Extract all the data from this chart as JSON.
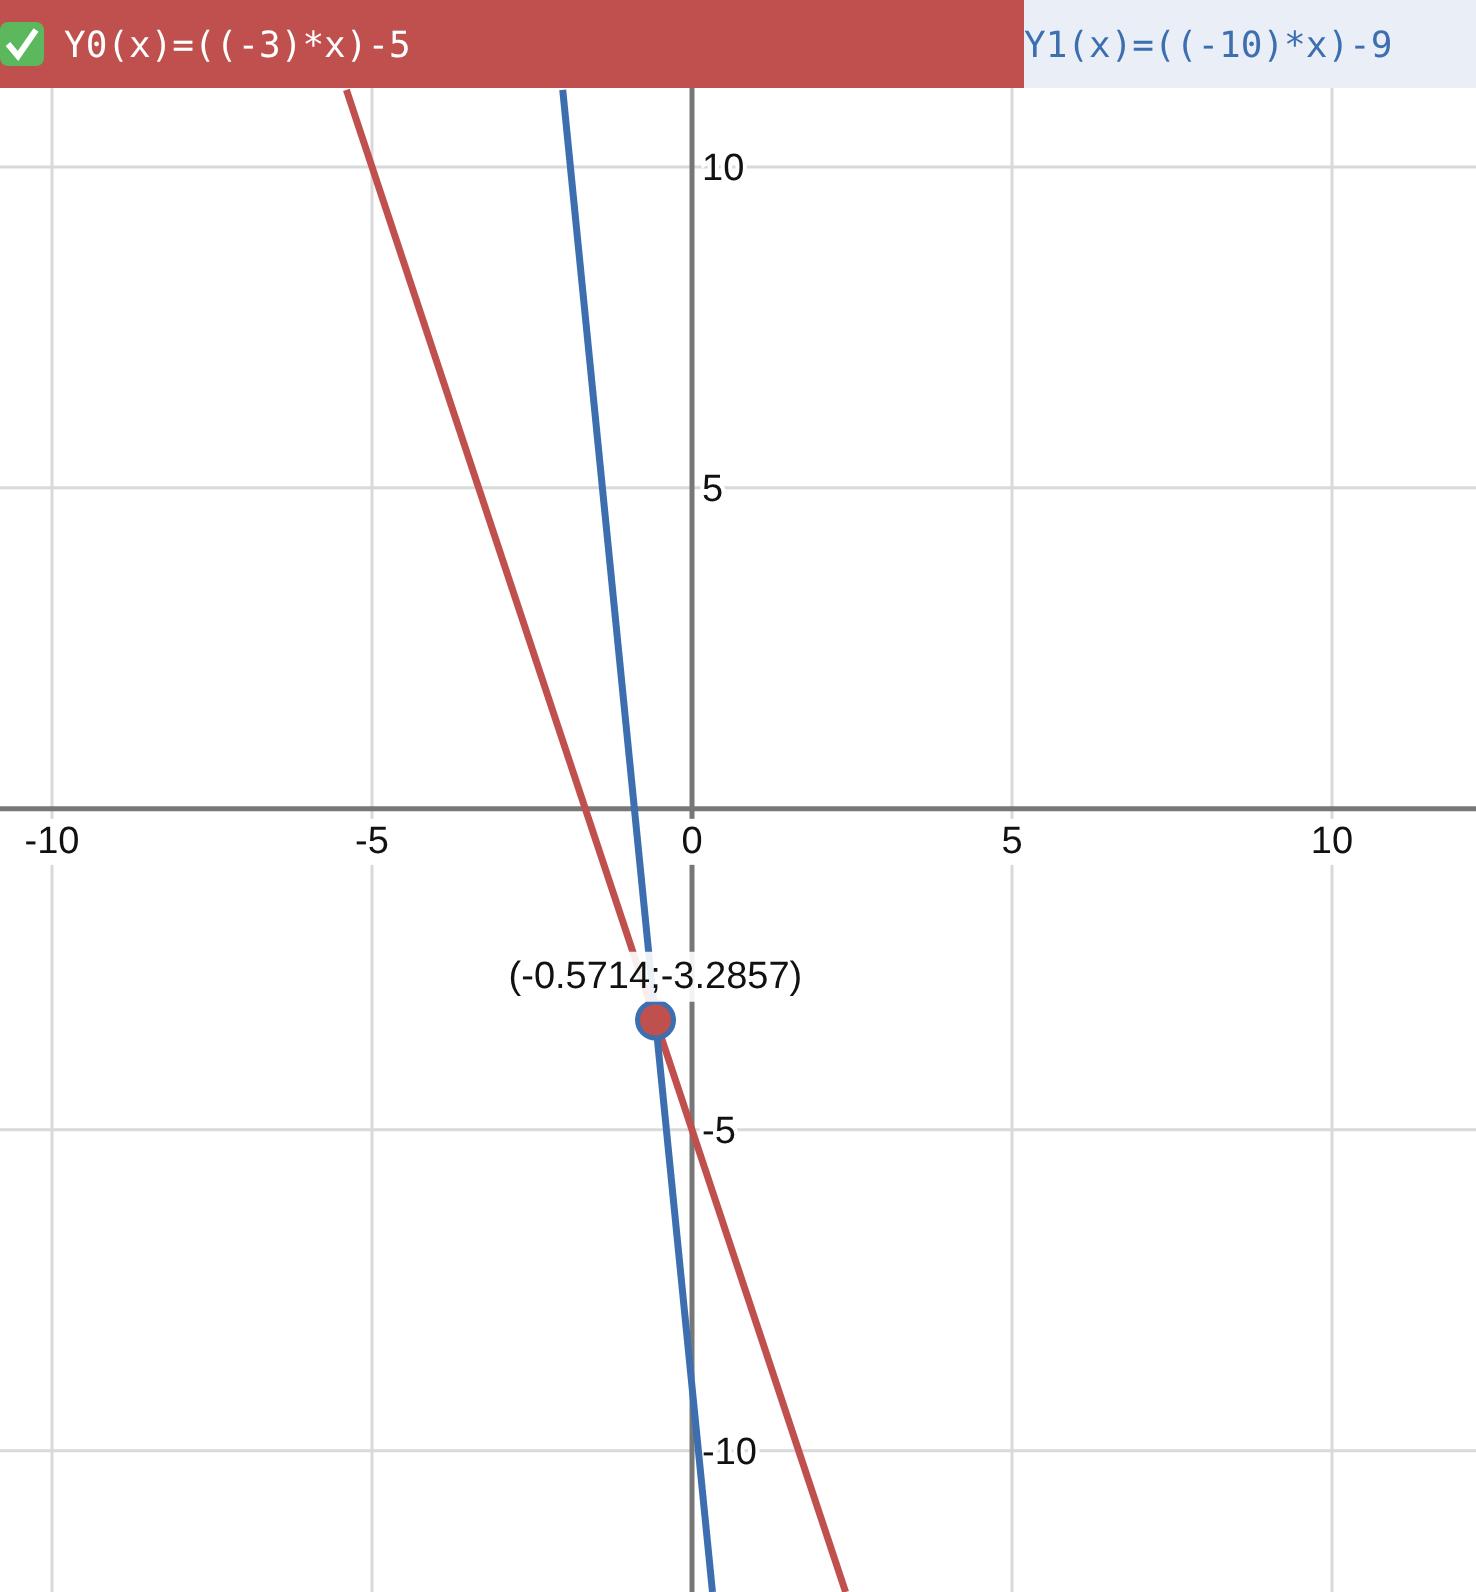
{
  "chart_data": {
    "type": "line",
    "xlim": [
      -10.8125,
      12.25
    ],
    "ylim": [
      -12.2,
      12.6
    ],
    "xticks": [
      -10,
      -5,
      0,
      5,
      10
    ],
    "yticks": [
      -10,
      -5,
      5,
      10
    ],
    "grid": true,
    "legend": "top",
    "series": [
      {
        "name": "Y0(x)=((-3)*x)-5",
        "color": "#c0504d",
        "x": [
          -5.4,
          2.4
        ],
        "values": [
          11.2,
          -12.2
        ]
      },
      {
        "name": "Y1(x)=((-10)*x)-9",
        "color": "#3d6fb0",
        "x": [
          -2.02,
          0.32
        ],
        "values": [
          11.2,
          -12.2
        ]
      },
      {
        "type": "scatter",
        "color": "#c0504d",
        "x": [
          -0.57
        ],
        "values": [
          -3.29
        ],
        "marker": "circle"
      }
    ],
    "annotations": [
      {
        "text": "(-0.5714;-3.2857)",
        "x": -0.5714,
        "y": -3.2857
      }
    ]
  }
}
